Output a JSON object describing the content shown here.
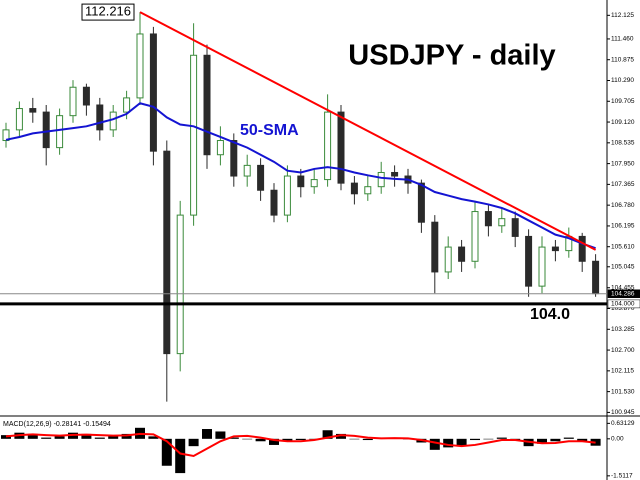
{
  "chart_data": [
    {
      "type": "candlestick",
      "title": "USDJPY - daily",
      "open": [
        108.6,
        108.9,
        109.5,
        109.4,
        108.4,
        109.3,
        110.1,
        109.6,
        108.9,
        109.4,
        109.8,
        111.6,
        108.3,
        102.6,
        106.5,
        111.0,
        108.2,
        108.6,
        107.6,
        107.9,
        107.2,
        106.5,
        107.6,
        107.3,
        107.5,
        109.4,
        107.4,
        107.1,
        107.3,
        107.7,
        107.6,
        107.4,
        106.3,
        104.9,
        105.6,
        105.2,
        106.6,
        106.2,
        106.4,
        105.9,
        104.5,
        105.6,
        105.5,
        105.9,
        105.2
      ],
      "high": [
        109.1,
        109.7,
        109.8,
        109.6,
        109.5,
        110.3,
        110.2,
        109.8,
        109.6,
        110.0,
        112.216,
        111.8,
        108.6,
        106.9,
        111.9,
        111.3,
        109.0,
        108.8,
        108.2,
        108.1,
        107.4,
        107.9,
        107.8,
        107.8,
        109.9,
        109.6,
        107.6,
        107.6,
        108.0,
        107.9,
        107.8,
        107.5,
        106.5,
        105.9,
        105.8,
        106.9,
        106.8,
        106.7,
        106.6,
        106.1,
        105.9,
        105.8,
        106.15,
        106.0,
        105.4
      ],
      "low": [
        108.4,
        108.7,
        109.1,
        107.9,
        108.2,
        109.1,
        109.3,
        108.6,
        108.7,
        109.2,
        109.6,
        107.9,
        101.25,
        102.1,
        106.2,
        107.8,
        107.9,
        107.3,
        107.3,
        106.9,
        106.3,
        106.3,
        107.0,
        107.1,
        107.3,
        107.2,
        106.8,
        106.9,
        107.1,
        107.3,
        107.1,
        106.0,
        104.3,
        104.7,
        104.9,
        105.0,
        105.9,
        106.0,
        105.6,
        104.2,
        104.3,
        105.2,
        105.3,
        104.9,
        104.2
      ],
      "close": [
        108.9,
        109.5,
        109.4,
        108.4,
        109.3,
        110.1,
        109.6,
        108.9,
        109.4,
        109.8,
        111.6,
        108.3,
        102.6,
        106.5,
        111.0,
        108.2,
        108.6,
        107.6,
        107.9,
        107.2,
        106.5,
        107.6,
        107.3,
        107.5,
        109.4,
        107.4,
        107.1,
        107.3,
        107.7,
        107.6,
        107.4,
        106.3,
        104.9,
        105.6,
        105.2,
        106.6,
        106.2,
        106.4,
        105.9,
        104.5,
        105.6,
        105.5,
        105.9,
        105.2,
        104.29
      ],
      "colors": {
        "up": "#3a8a3a",
        "down": "#2a2a2a"
      },
      "overlays": [
        {
          "name": "50-SMA",
          "color": "#1414d2",
          "values": [
            108.62,
            108.7,
            108.8,
            108.85,
            108.9,
            108.95,
            109.0,
            109.1,
            109.2,
            109.35,
            109.65,
            109.55,
            109.25,
            109.05,
            109.0,
            108.85,
            108.7,
            108.55,
            108.4,
            108.2,
            108.0,
            107.75,
            107.7,
            107.8,
            107.85,
            107.8,
            107.7,
            107.62,
            107.55,
            107.52,
            107.5,
            107.35,
            107.15,
            107.05,
            106.95,
            106.88,
            106.8,
            106.7,
            106.55,
            106.35,
            106.15,
            105.95,
            105.85,
            105.7,
            105.57
          ]
        }
      ],
      "trendline": {
        "color": "#ff0000",
        "start": {
          "index": 10,
          "value": 112.216
        },
        "end": {
          "index": 44,
          "value": 105.52
        }
      },
      "hlines": [
        {
          "value": 104,
          "label": "104.0"
        }
      ],
      "price_labels": [
        {
          "value": 104.286,
          "label": "104.286"
        },
        {
          "value": 104,
          "label": "104.000"
        }
      ],
      "annotations": [
        {
          "value": 112.216,
          "label": "112.216"
        }
      ],
      "ylim": [
        100.9,
        112.5
      ],
      "yticks": [
        112.125,
        {
          "value": 111.46,
          "label": "111.460"
        },
        110.875,
        {
          "value": 110.29,
          "label": "110.290"
        },
        109.705,
        {
          "value": 109.12,
          "label": "109.120"
        },
        108.535,
        {
          "value": 107.95,
          "label": "107.950"
        },
        107.365,
        {
          "value": 106.78,
          "label": "106.780"
        },
        106.195,
        {
          "value": 105.61,
          "label": "105.610"
        },
        105.045,
        104.455,
        {
          "value": 103.87,
          "label": "103.870"
        },
        103.285,
        {
          "value": 102.7,
          "label": "102.700"
        },
        102.115,
        {
          "value": 101.53,
          "label": "101.530"
        },
        100.945
      ]
    },
    {
      "type": "macd",
      "label": "MACD(12,26,9) -0.28141 -0.15494",
      "color": "#000000",
      "histogram": [
        0.15,
        0.25,
        0.2,
        0.05,
        0.1,
        0.25,
        0.2,
        0.05,
        0.1,
        0.2,
        0.45,
        0.1,
        -1.1,
        -1.4,
        -0.3,
        0.4,
        0.3,
        0.05,
        0.0,
        -0.1,
        -0.25,
        -0.1,
        -0.05,
        0.0,
        0.35,
        0.2,
        0.0,
        -0.05,
        0.05,
        0.05,
        0.0,
        -0.15,
        -0.45,
        -0.35,
        -0.3,
        -0.05,
        0.0,
        0.05,
        -0.05,
        -0.3,
        -0.2,
        -0.1,
        0.05,
        -0.1,
        -0.28141
      ],
      "signal": {
        "color": "#ff0000",
        "values": [
          0.1,
          0.15,
          0.18,
          0.15,
          0.13,
          0.16,
          0.17,
          0.15,
          0.13,
          0.14,
          0.2,
          0.18,
          -0.1,
          -0.6,
          -0.7,
          -0.4,
          -0.1,
          0.1,
          0.12,
          0.05,
          -0.05,
          -0.1,
          -0.1,
          -0.05,
          0.05,
          0.15,
          0.12,
          0.05,
          0.02,
          0.03,
          0.02,
          -0.05,
          -0.15,
          -0.25,
          -0.3,
          -0.25,
          -0.15,
          -0.05,
          -0.05,
          -0.12,
          -0.18,
          -0.17,
          -0.1,
          -0.1,
          -0.15494
        ]
      },
      "ylim": [
        -1.6,
        0.85
      ],
      "yticks": [
        0.63129,
        {
          "value": 0,
          "label": "0.00"
        },
        -1.5117
      ]
    }
  ]
}
